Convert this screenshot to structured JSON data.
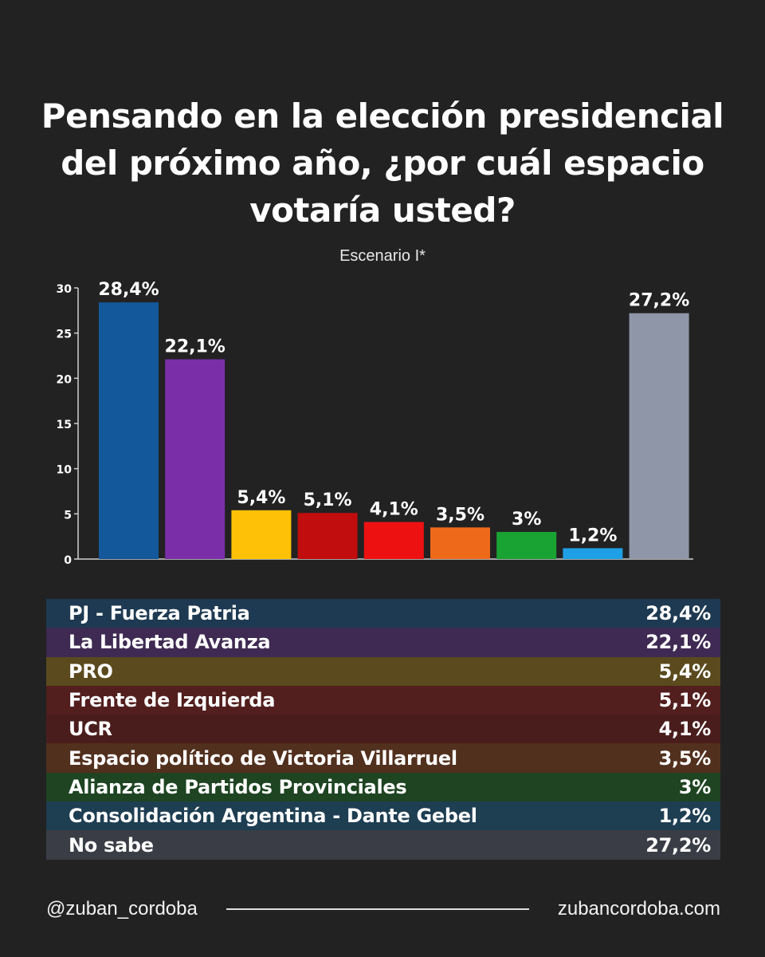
{
  "title_lines": [
    "Pensando en la elección presidencial",
    "del próximo año, ¿por cuál espacio",
    "votaría usted?"
  ],
  "subtitle": "Escenario I*",
  "chart_data": {
    "type": "bar",
    "title": "Pensando en la elección presidencial del próximo año, ¿por cuál espacio votaría usted?",
    "subtitle": "Escenario I*",
    "categories": [
      "PJ - Fuerza Patria",
      "La Libertad Avanza",
      "PRO",
      "Frente de Izquierda",
      "UCR",
      "Espacio político de Victoria Villarruel",
      "Alianza de Partidos Provinciales",
      "Consolidación Argentina - Dante Gebel",
      "No sabe"
    ],
    "values": [
      28.4,
      22.1,
      5.4,
      5.1,
      4.1,
      3.5,
      3,
      1.2,
      27.2
    ],
    "value_labels": [
      "28,4%",
      "22,1%",
      "5,4%",
      "5,1%",
      "4,1%",
      "3,5%",
      "3%",
      "1,2%",
      "27,2%"
    ],
    "colors": [
      "#13589a",
      "#7a2fa8",
      "#ffc107",
      "#c10d0d",
      "#ee1111",
      "#ee6a1a",
      "#19a332",
      "#1fa0e6",
      "#8e96a8"
    ],
    "y_ticks": [
      "0",
      "5",
      "10",
      "15",
      "20",
      "25",
      "30"
    ],
    "ylim": [
      0,
      30
    ],
    "grid": false,
    "xlabel": "",
    "ylabel": ""
  },
  "legend": [
    {
      "label": "PJ - Fuerza Patria",
      "value": "28,4%",
      "bg": "#1e3a52"
    },
    {
      "label": "La Libertad Avanza",
      "value": "22,1%",
      "bg": "#3e2a52"
    },
    {
      "label": "PRO",
      "value": "5,4%",
      "bg": "#5a4a1d"
    },
    {
      "label": "Frente de Izquierda",
      "value": "5,1%",
      "bg": "#521e1e"
    },
    {
      "label": "UCR",
      "value": "4,1%",
      "bg": "#4a1d1d"
    },
    {
      "label": "Espacio político de Victoria Villarruel",
      "value": "3,5%",
      "bg": "#52301e"
    },
    {
      "label": "Alianza de Partidos Provinciales",
      "value": "3%",
      "bg": "#1e4422"
    },
    {
      "label": "Consolidación Argentina - Dante Gebel",
      "value": "1,2%",
      "bg": "#1e3e52"
    },
    {
      "label": "No sabe",
      "value": "27,2%",
      "bg": "#3a3d45"
    }
  ],
  "footer": {
    "handle": "@zuban_cordoba",
    "website": "zubancordoba.com"
  }
}
